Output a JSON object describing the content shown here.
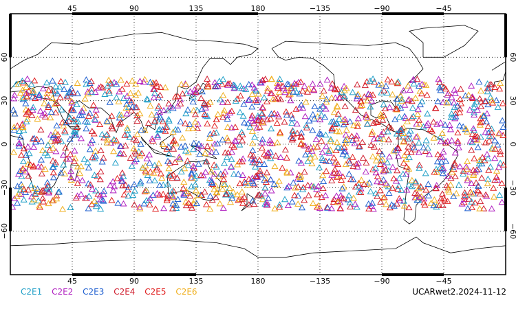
{
  "map": {
    "projection": "cylindrical equidistant",
    "center_lon": 180,
    "lat_range": [
      -90,
      90
    ],
    "lon_labels": [
      "45",
      "90",
      "135",
      "180",
      "−135",
      "−90",
      "−45"
    ],
    "lat_labels": [
      "60",
      "30",
      "0",
      "−30",
      "−60"
    ],
    "grid": "dotted",
    "marker": "open-triangle"
  },
  "legend": [
    {
      "label": "C2E1",
      "color": "#22a0c8"
    },
    {
      "label": "C2E2",
      "color": "#b020c0"
    },
    {
      "label": "C2E3",
      "color": "#2060d0"
    },
    {
      "label": "C2E4",
      "color": "#d02030"
    },
    {
      "label": "C2E5",
      "color": "#e02020"
    },
    {
      "label": "C2E6",
      "color": "#f0b020"
    }
  ],
  "footer_label": "UCARwet2.2024-11-12",
  "observations": {
    "lat_band": [
      -45,
      45
    ]
  }
}
